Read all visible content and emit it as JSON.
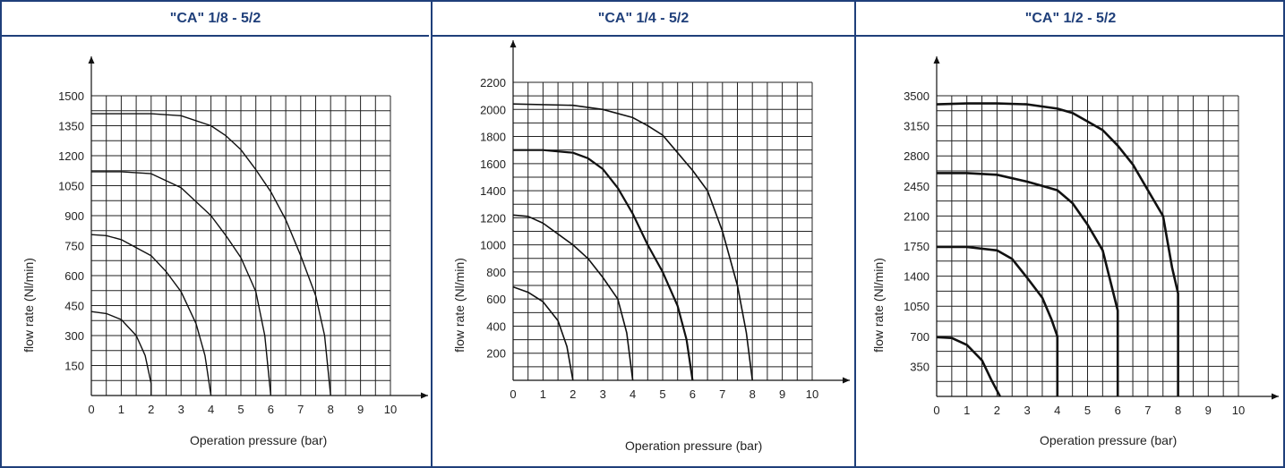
{
  "colors": {
    "frame": "#1f3f7a",
    "title_text": "#1f3f7a",
    "grid": "#222222",
    "curve": "#111111"
  },
  "chart_data": [
    {
      "type": "line",
      "title": "\"CA\" 1/8 - 5/2",
      "xlabel": "Operation pressure (bar)",
      "ylabel": "flow rate (Nl/min)",
      "xlim": [
        0,
        10
      ],
      "ylim": [
        0,
        1500
      ],
      "xticks": [
        "0",
        "1",
        "2",
        "3",
        "4",
        "5",
        "6",
        "7",
        "8",
        "9",
        "10"
      ],
      "yticks": [
        "150",
        "300",
        "450",
        "600",
        "750",
        "900",
        "1050",
        "1200",
        "1350",
        "1500"
      ],
      "ytick_values": [
        150,
        300,
        450,
        600,
        750,
        900,
        1050,
        1200,
        1350,
        1500
      ],
      "grid": true,
      "grid_x_step": 0.5,
      "grid_y_step": 75,
      "series": [
        {
          "points": [
            [
              0,
              420
            ],
            [
              0.5,
              410
            ],
            [
              1,
              380
            ],
            [
              1.5,
              300
            ],
            [
              1.8,
              200
            ],
            [
              2,
              60
            ],
            [
              2,
              0
            ]
          ]
        },
        {
          "points": [
            [
              0,
              805
            ],
            [
              0.5,
              800
            ],
            [
              1,
              780
            ],
            [
              2,
              700
            ],
            [
              2.5,
              620
            ],
            [
              3,
              520
            ],
            [
              3.5,
              360
            ],
            [
              3.8,
              200
            ],
            [
              4,
              0
            ]
          ]
        },
        {
          "points": [
            [
              0,
              1120
            ],
            [
              1,
              1120
            ],
            [
              2,
              1110
            ],
            [
              3,
              1040
            ],
            [
              4,
              900
            ],
            [
              4.5,
              800
            ],
            [
              5,
              690
            ],
            [
              5.5,
              520
            ],
            [
              5.8,
              300
            ],
            [
              6,
              0
            ]
          ]
        },
        {
          "points": [
            [
              0,
              1410
            ],
            [
              2,
              1410
            ],
            [
              3,
              1400
            ],
            [
              4,
              1350
            ],
            [
              4.5,
              1300
            ],
            [
              5,
              1230
            ],
            [
              5.5,
              1130
            ],
            [
              6,
              1020
            ],
            [
              6.5,
              880
            ],
            [
              7,
              700
            ],
            [
              7.5,
              500
            ],
            [
              7.8,
              300
            ],
            [
              8,
              0
            ]
          ]
        }
      ]
    },
    {
      "type": "line",
      "title": "\"CA\" 1/4 - 5/2",
      "xlabel": "Operation pressure (bar)",
      "ylabel": "flow rate (Nl/min)",
      "xlim": [
        0,
        10
      ],
      "ylim": [
        0,
        2200
      ],
      "xticks": [
        "0",
        "1",
        "2",
        "3",
        "4",
        "5",
        "6",
        "7",
        "8",
        "9",
        "10"
      ],
      "yticks": [
        "200",
        "400",
        "600",
        "800",
        "1000",
        "1200",
        "1400",
        "1600",
        "1800",
        "2000",
        "2200"
      ],
      "ytick_values": [
        200,
        400,
        600,
        800,
        1000,
        1200,
        1400,
        1600,
        1800,
        2000,
        2200
      ],
      "grid": true,
      "grid_x_step": 0.5,
      "grid_y_step": 100,
      "series": [
        {
          "points": [
            [
              0,
              690
            ],
            [
              0.5,
              650
            ],
            [
              1,
              580
            ],
            [
              1.5,
              440
            ],
            [
              1.8,
              250
            ],
            [
              2,
              0
            ]
          ]
        },
        {
          "points": [
            [
              0,
              1220
            ],
            [
              0.5,
              1210
            ],
            [
              1,
              1160
            ],
            [
              2,
              1000
            ],
            [
              2.5,
              900
            ],
            [
              3,
              760
            ],
            [
              3.5,
              600
            ],
            [
              3.8,
              350
            ],
            [
              4,
              0
            ]
          ]
        },
        {
          "points": [
            [
              0,
              1700
            ],
            [
              1,
              1700
            ],
            [
              2,
              1680
            ],
            [
              2.5,
              1640
            ],
            [
              3,
              1560
            ],
            [
              3.5,
              1420
            ],
            [
              4,
              1230
            ],
            [
              4.5,
              1000
            ],
            [
              5,
              800
            ],
            [
              5.5,
              550
            ],
            [
              5.8,
              300
            ],
            [
              6,
              0
            ]
          ]
        },
        {
          "points": [
            [
              0,
              2040
            ],
            [
              2,
              2030
            ],
            [
              3,
              2000
            ],
            [
              4,
              1940
            ],
            [
              4.5,
              1880
            ],
            [
              5,
              1810
            ],
            [
              5.5,
              1680
            ],
            [
              6,
              1550
            ],
            [
              6.5,
              1400
            ],
            [
              7,
              1100
            ],
            [
              7.5,
              700
            ],
            [
              7.8,
              350
            ],
            [
              8,
              0
            ]
          ]
        }
      ]
    },
    {
      "type": "line",
      "title": "\"CA\" 1/2 - 5/2",
      "xlabel": "Operation pressure (bar)",
      "ylabel": "flow rate (Nl/min)",
      "xlim": [
        0,
        10
      ],
      "ylim": [
        0,
        3500
      ],
      "xticks": [
        "0",
        "1",
        "2",
        "3",
        "4",
        "5",
        "6",
        "7",
        "8",
        "9",
        "10"
      ],
      "yticks": [
        "350",
        "700",
        "1050",
        "1400",
        "1750",
        "2100",
        "2450",
        "2800",
        "3150",
        "3500"
      ],
      "ytick_values": [
        350,
        700,
        1050,
        1400,
        1750,
        2100,
        2450,
        2800,
        3150,
        3500
      ],
      "grid": true,
      "grid_x_step": 0.5,
      "grid_y_step": 175,
      "series": [
        {
          "points": [
            [
              0,
              690
            ],
            [
              0.5,
              680
            ],
            [
              1,
              600
            ],
            [
              1.5,
              420
            ],
            [
              1.8,
              200
            ],
            [
              2.1,
              0
            ]
          ]
        },
        {
          "points": [
            [
              0,
              1740
            ],
            [
              1,
              1740
            ],
            [
              2,
              1700
            ],
            [
              2.5,
              1600
            ],
            [
              3,
              1380
            ],
            [
              3.5,
              1150
            ],
            [
              3.8,
              900
            ],
            [
              4,
              700
            ],
            [
              4,
              0
            ]
          ]
        },
        {
          "points": [
            [
              0,
              2600
            ],
            [
              1,
              2600
            ],
            [
              2,
              2580
            ],
            [
              3,
              2500
            ],
            [
              3.5,
              2450
            ],
            [
              4,
              2400
            ],
            [
              4.5,
              2250
            ],
            [
              5,
              2000
            ],
            [
              5.5,
              1700
            ],
            [
              6,
              1000
            ],
            [
              6,
              0
            ]
          ]
        },
        {
          "points": [
            [
              0,
              3400
            ],
            [
              1,
              3410
            ],
            [
              2,
              3410
            ],
            [
              3,
              3400
            ],
            [
              4,
              3350
            ],
            [
              4.5,
              3300
            ],
            [
              5,
              3200
            ],
            [
              5.5,
              3100
            ],
            [
              6,
              2920
            ],
            [
              6.5,
              2700
            ],
            [
              7,
              2400
            ],
            [
              7.5,
              2100
            ],
            [
              7.8,
              1500
            ],
            [
              8,
              1200
            ],
            [
              8,
              0
            ]
          ]
        }
      ]
    }
  ]
}
